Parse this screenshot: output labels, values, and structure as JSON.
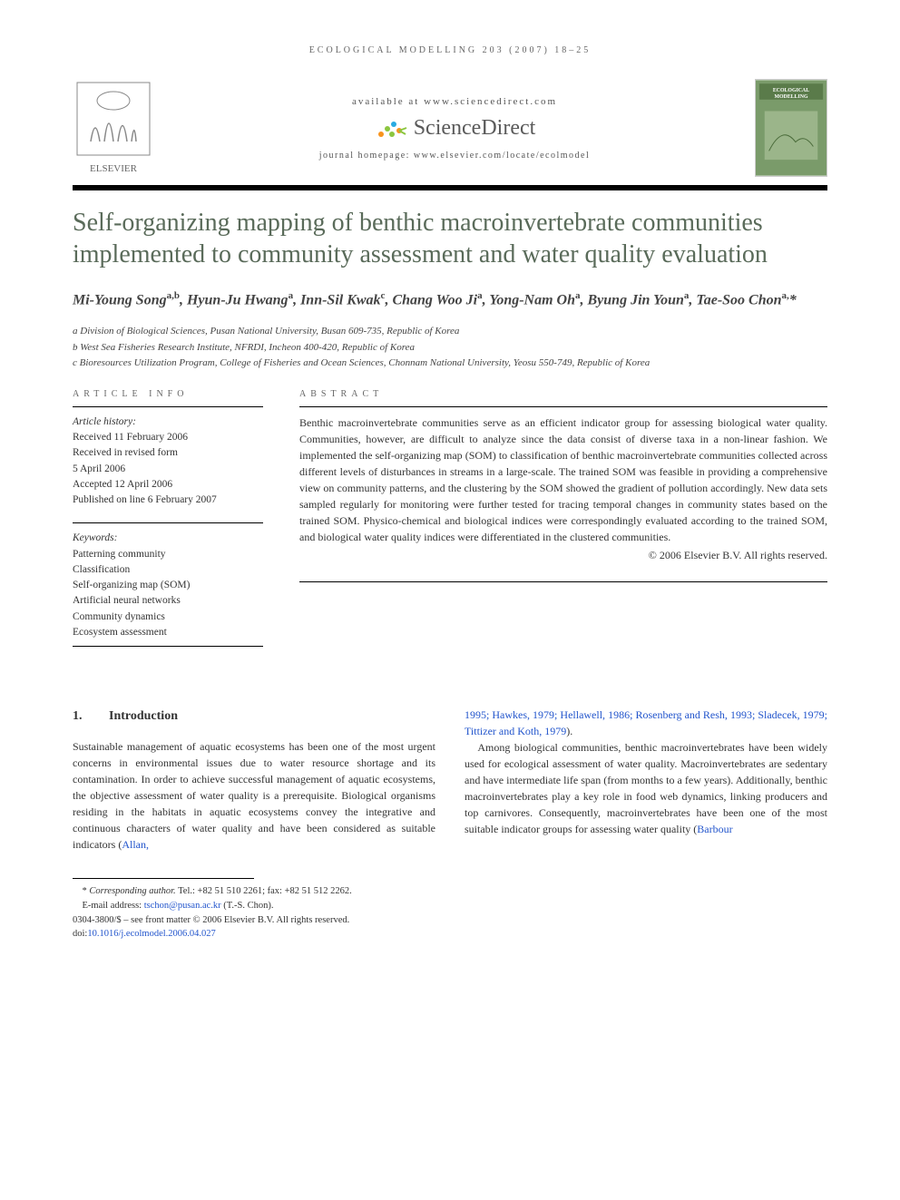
{
  "running_header": "ECOLOGICAL MODELLING 203 (2007) 18–25",
  "masthead": {
    "available_at": "available at www.sciencedirect.com",
    "sciencedirect_text": "ScienceDirect",
    "journal_homepage": "journal homepage: www.elsevier.com/locate/ecolmodel",
    "publisher_name": "ELSEVIER",
    "journal_cover_title": "ECOLOGICAL MODELLING"
  },
  "title": "Self-organizing mapping of benthic macroinvertebrate communities implemented to community assessment and water quality evaluation",
  "authors_html": "Mi-Young Song<sup>a,b</sup>, Hyun-Ju Hwang<sup>a</sup>, Inn-Sil Kwak<sup>c</sup>, Chang Woo Ji<sup>a</sup>, Yong-Nam Oh<sup>a</sup>, Byung Jin Youn<sup>a</sup>, Tae-Soo Chon<sup>a,</sup>*",
  "affiliations": [
    "a Division of Biological Sciences, Pusan National University, Busan 609-735, Republic of Korea",
    "b West Sea Fisheries Research Institute, NFRDI, Incheon 400-420, Republic of Korea",
    "c Bioresources Utilization Program, College of Fisheries and Ocean Sciences, Chonnam National University, Yeosu 550-749, Republic of Korea"
  ],
  "article_info": {
    "label": "ARTICLE INFO",
    "history_heading": "Article history:",
    "history": [
      "Received 11 February 2006",
      "Received in revised form",
      "5 April 2006",
      "Accepted 12 April 2006",
      "Published on line 6 February 2007"
    ],
    "keywords_heading": "Keywords:",
    "keywords": [
      "Patterning community",
      "Classification",
      "Self-organizing map (SOM)",
      "Artificial neural networks",
      "Community dynamics",
      "Ecosystem assessment"
    ]
  },
  "abstract": {
    "label": "ABSTRACT",
    "text": "Benthic macroinvertebrate communities serve as an efficient indicator group for assessing biological water quality. Communities, however, are difficult to analyze since the data consist of diverse taxa in a non-linear fashion. We implemented the self-organizing map (SOM) to classification of benthic macroinvertebrate communities collected across different levels of disturbances in streams in a large-scale. The trained SOM was feasible in providing a comprehensive view on community patterns, and the clustering by the SOM showed the gradient of pollution accordingly. New data sets sampled regularly for monitoring were further tested for tracing temporal changes in community states based on the trained SOM. Physico-chemical and biological indices were correspondingly evaluated according to the trained SOM, and biological water quality indices were differentiated in the clustered communities.",
    "copyright": "© 2006 Elsevier B.V. All rights reserved."
  },
  "body": {
    "section_number": "1.",
    "section_title": "Introduction",
    "col1_p1_pre": "Sustainable management of aquatic ecosystems has been one of the most urgent concerns in environmental issues due to water resource shortage and its contamination. In order to achieve successful management of aquatic ecosystems, the objective assessment of water quality is a prerequisite. Biological organisms residing in the habitats in aquatic ecosystems convey the integrative and continuous characters of water quality and have been considered as suitable indicators (",
    "col1_link": "Allan,",
    "col2_link1": "1995; Hawkes, 1979; Hellawell, 1986; Rosenberg and Resh, 1993; Sladecek, 1979; Tittizer and Koth, 1979",
    "col2_after_link1": ").",
    "col2_p2_pre": "Among biological communities, benthic macroinvertebrates have been widely used for ecological assessment of water quality. Macroinvertebrates are sedentary and have intermediate life span (from months to a few years). Additionally, benthic macroinvertebrates play a key role in food web dynamics, linking producers and top carnivores. Consequently, macroinvertebrates have been one of the most suitable indicator groups for assessing water quality (",
    "col2_link2": "Barbour"
  },
  "footnotes": {
    "corresponding": "* Corresponding author. Tel.: +82 51 510 2261; fax: +82 51 512 2262.",
    "email_label": "E-mail address: ",
    "email": "tschon@pusan.ac.kr",
    "email_after": " (T.-S. Chon).",
    "front_matter": "0304-3800/$ – see front matter © 2006 Elsevier B.V. All rights reserved.",
    "doi_label": "doi:",
    "doi": "10.1016/j.ecolmodel.2006.04.027"
  },
  "colors": {
    "title_color": "#5a6b5a",
    "link_color": "#2255cc",
    "sd_orange": "#f7941e",
    "sd_green": "#8cc63f",
    "sd_blue": "#29abe2",
    "sd_text": "#5a5a5a",
    "cover_green": "#7a9b6a",
    "elsevier_gray": "#888888"
  }
}
